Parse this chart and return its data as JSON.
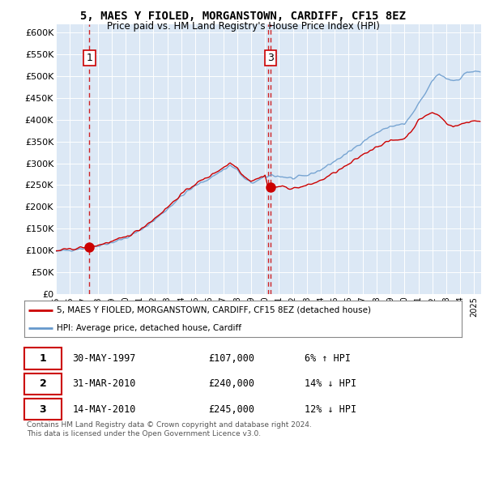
{
  "title": "5, MAES Y FIOLED, MORGANSTOWN, CARDIFF, CF15 8EZ",
  "subtitle": "Price paid vs. HM Land Registry's House Price Index (HPI)",
  "ylim": [
    0,
    620000
  ],
  "yticks": [
    0,
    50000,
    100000,
    150000,
    200000,
    250000,
    300000,
    350000,
    400000,
    450000,
    500000,
    550000,
    600000
  ],
  "ytick_labels": [
    "£0",
    "£50K",
    "£100K",
    "£150K",
    "£200K",
    "£250K",
    "£300K",
    "£350K",
    "£400K",
    "£450K",
    "£500K",
    "£550K",
    "£600K"
  ],
  "bg_color": "#dce8f5",
  "red_line_color": "#cc0000",
  "blue_line_color": "#6699cc",
  "dashed_line_color": "#cc0000",
  "transaction1_date": 1997.41,
  "transaction1_price": 107000,
  "transaction1_label": "1",
  "transaction2_date": 2010.24,
  "transaction2_price": 240000,
  "transaction2_label": "2",
  "transaction3_date": 2010.37,
  "transaction3_price": 245000,
  "transaction3_label": "3",
  "legend_red_label": "5, MAES Y FIOLED, MORGANSTOWN, CARDIFF, CF15 8EZ (detached house)",
  "legend_blue_label": "HPI: Average price, detached house, Cardiff",
  "table_rows": [
    [
      "1",
      "30-MAY-1997",
      "£107,000",
      "6% ↑ HPI"
    ],
    [
      "2",
      "31-MAR-2010",
      "£240,000",
      "14% ↓ HPI"
    ],
    [
      "3",
      "14-MAY-2010",
      "£245,000",
      "12% ↓ HPI"
    ]
  ],
  "footnote1": "Contains HM Land Registry data © Crown copyright and database right 2024.",
  "footnote2": "This data is licensed under the Open Government Licence v3.0.",
  "xlim_start": 1995.0,
  "xlim_end": 2025.5
}
